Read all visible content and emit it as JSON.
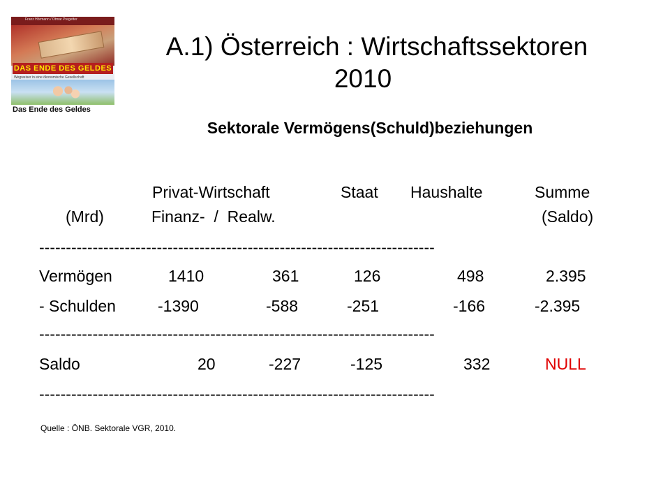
{
  "book_cover": {
    "authors": "Franz Hörmann / Otmar Pregetter",
    "title_banner": "DAS ENDE DES GELDES",
    "subtitle": "Wegweiser in eine ökonomische Gesellschaft",
    "bottom_title": "Das Ende des Geldes"
  },
  "title": {
    "line1": "A.1) Österreich : Wirtschaftssektoren",
    "line2": "2010"
  },
  "subtitle": "Sektorale Vermögens(Schuld)beziehungen",
  "table": {
    "header_row1": {
      "privat_wirtschaft": "Privat-Wirtschaft",
      "staat": "Staat",
      "haushalte": "Haushalte",
      "summe": "Summe"
    },
    "header_row2": {
      "unit": "(Mrd)",
      "finanz_realw": "Finanz-  /  Realw.",
      "saldo": "(Saldo)"
    },
    "separator": "--------------------------------------------------------------------------",
    "rows": [
      {
        "label": "Vermögen",
        "finanz": "1410",
        "realw": "361",
        "staat": "126",
        "haushalte": "498",
        "summe": "2.395"
      },
      {
        "label": "- Schulden",
        "finanz": "-1390",
        "realw": "-588",
        "staat": "-251",
        "haushalte": "-166",
        "summe": "-2.395"
      }
    ],
    "saldo_row": {
      "label": "Saldo",
      "finanz": "20",
      "realw": "-227",
      "staat": "-125",
      "haushalte": "332",
      "summe": "NULL"
    }
  },
  "source": "Quelle : ÖNB. Sektorale VGR, 2010.",
  "colors": {
    "null_highlight": "#e00000"
  }
}
